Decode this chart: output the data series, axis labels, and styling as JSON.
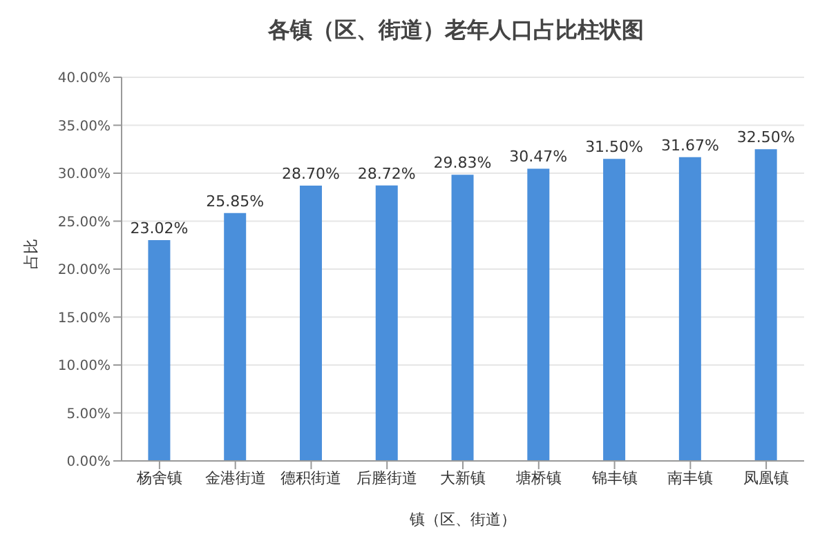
{
  "chart_data": {
    "type": "bar",
    "title": "各镇（区、街道）老年人口占比柱状图",
    "xlabel": "镇（区、街道）",
    "ylabel": "占比",
    "categories": [
      "杨舍镇",
      "金港街道",
      "德积街道",
      "后塍街道",
      "大新镇",
      "塘桥镇",
      "锦丰镇",
      "南丰镇",
      "凤凰镇"
    ],
    "values": [
      23.02,
      25.85,
      28.7,
      28.72,
      29.83,
      30.47,
      31.5,
      31.67,
      32.5
    ],
    "value_labels": [
      "23.02%",
      "25.85%",
      "28.70%",
      "28.72%",
      "29.83%",
      "30.47%",
      "31.50%",
      "31.67%",
      "32.50%"
    ],
    "color": "#4a8fdb",
    "ylim": [
      0,
      40
    ],
    "yticks": [
      {
        "value": 0,
        "label": "0.00%"
      },
      {
        "value": 5,
        "label": "5.00%"
      },
      {
        "value": 10,
        "label": "10.00%"
      },
      {
        "value": 15,
        "label": "15.00%"
      },
      {
        "value": 20,
        "label": "20.00%"
      },
      {
        "value": 25,
        "label": "25.00%"
      },
      {
        "value": 30,
        "label": "30.00%"
      },
      {
        "value": 35,
        "label": "35.00%"
      },
      {
        "value": 40,
        "label": "40.00%"
      }
    ],
    "grid": "y"
  }
}
